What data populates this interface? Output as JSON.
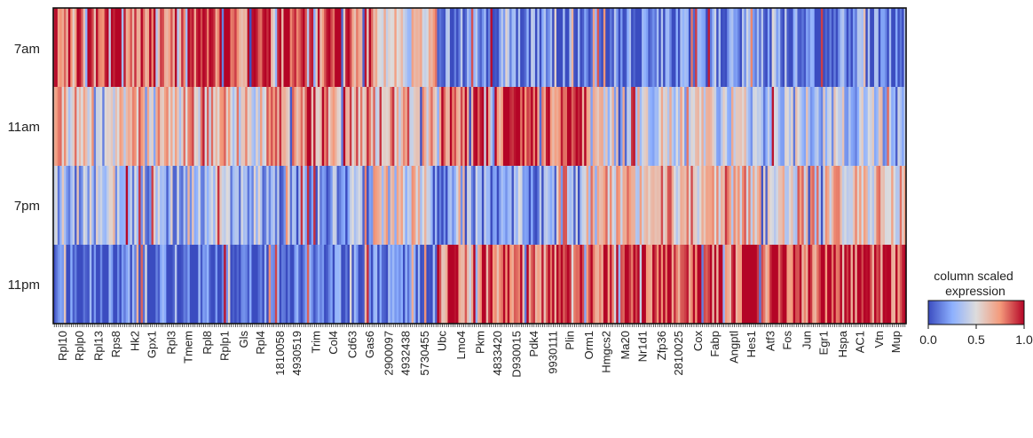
{
  "chart_data": {
    "type": "heatmap",
    "title": "",
    "xlabel": "",
    "ylabel": "",
    "rows": [
      "7am",
      "11am",
      "7pm",
      "11pm"
    ],
    "n_columns": 400,
    "column_label_fragments": [
      "Rpl10",
      "Rplp0",
      "Rpl13",
      "Rps8",
      "Hk2",
      "Gpx1",
      "Rpl3",
      "Tmem",
      "Rpl8",
      "Rplp1",
      "Gls",
      "Rpl4",
      "1810058",
      "4930519",
      "Trim",
      "Col4",
      "Cd63",
      "Gas6",
      "2900097",
      "4932438",
      "5730455",
      "Ubc",
      "Lmo4",
      "Pkm",
      "4833420",
      "D930015",
      "Pdk4",
      "9930111",
      "Plin",
      "Orm1",
      "Hmgcs2",
      "Ma20",
      "Nr1d1",
      "Zfp36",
      "2810025",
      "Cox",
      "Fabp",
      "Angptl",
      "Hes1",
      "Atf3",
      "Fos",
      "Jun",
      "Egr1",
      "Hspa",
      "AC1",
      "Vtn",
      "Mup"
    ],
    "colorbar": {
      "title": "column scaled\nexpression",
      "ticks": [
        "0.0",
        "0.5",
        "1.0"
      ],
      "min": 0,
      "max": 1,
      "colormap": "coolwarm",
      "colors": [
        "#3b4cc0",
        "#8db0fe",
        "#dddcdc",
        "#f49a7b",
        "#b40426"
      ]
    },
    "segments": [
      {
        "range": [
          0,
          100
        ],
        "values": [
          0.88,
          0.6,
          0.32,
          0.05
        ]
      },
      {
        "range": [
          100,
          150
        ],
        "values": [
          0.85,
          0.78,
          0.25,
          0.06
        ]
      },
      {
        "range": [
          150,
          180
        ],
        "values": [
          0.55,
          0.65,
          0.5,
          0.1
        ]
      },
      {
        "range": [
          180,
          250
        ],
        "values": [
          0.15,
          0.9,
          0.2,
          0.88
        ]
      },
      {
        "range": [
          250,
          320
        ],
        "values": [
          0.1,
          0.45,
          0.62,
          0.9
        ]
      },
      {
        "range": [
          320,
          400
        ],
        "values": [
          0.12,
          0.38,
          0.6,
          0.92
        ]
      }
    ]
  }
}
